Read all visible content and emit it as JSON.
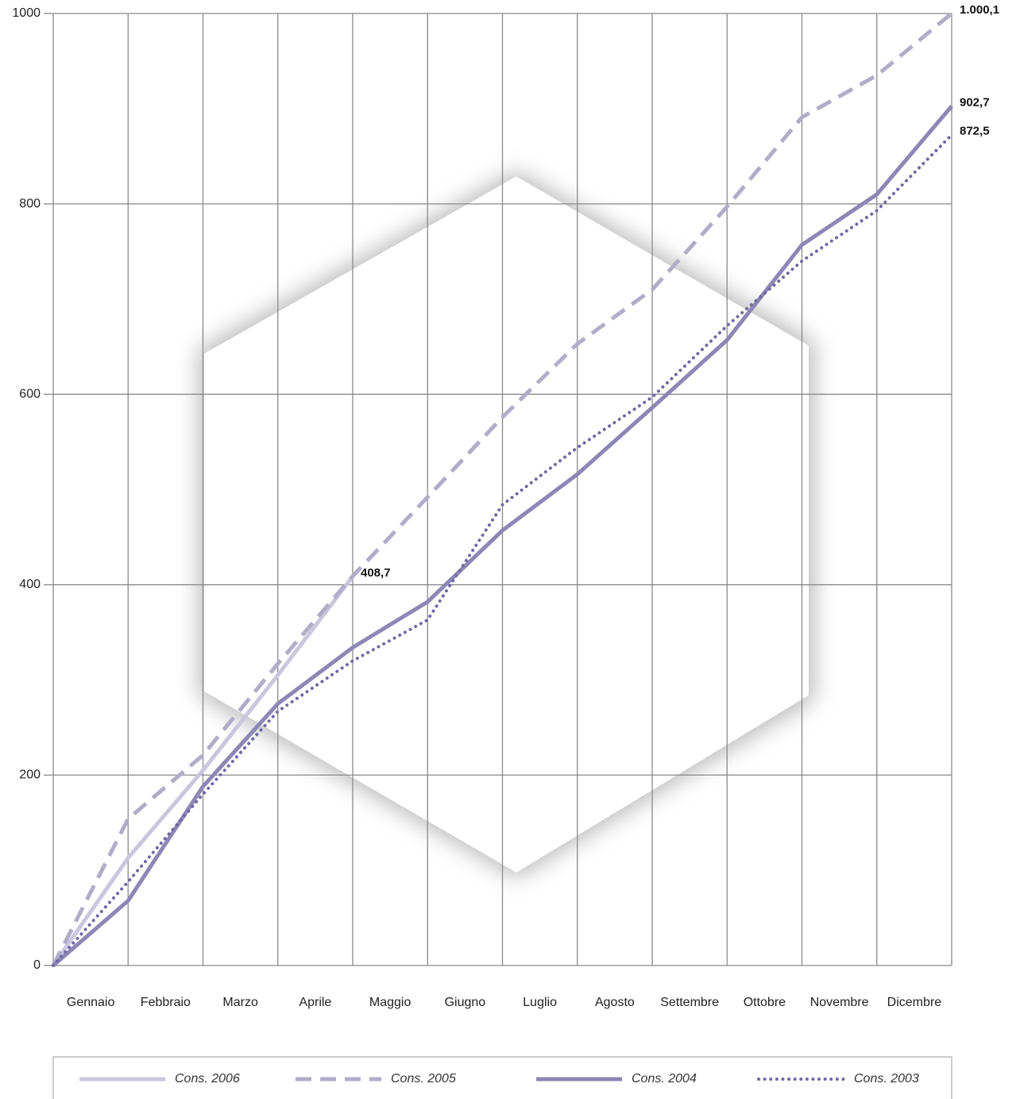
{
  "chart_data": {
    "type": "line",
    "categories": [
      null,
      "Gennaio",
      "Febbraio",
      "Marzo",
      "Aprile",
      "Maggio",
      "Giugno",
      "Luglio",
      "Agosto",
      "Settembre",
      "Ottobre",
      "Novembre",
      "Dicembre"
    ],
    "series": [
      {
        "name": "Cons. 2006",
        "color": "#c9c6dd",
        "style": "solid",
        "values": [
          0,
          113,
          205,
          305,
          408.7,
          null,
          null,
          null,
          null,
          null,
          null,
          null,
          null
        ],
        "value_labels": [
          null,
          null,
          null,
          null,
          "408,7",
          null,
          null,
          null,
          null,
          null,
          null,
          null,
          null
        ]
      },
      {
        "name": "Cons. 2005",
        "color": "#b1adc9",
        "style": "dashed",
        "values": [
          0,
          154,
          221,
          317,
          409,
          492,
          576,
          653,
          710,
          797,
          891,
          935,
          1000.1
        ],
        "value_labels": [
          null,
          null,
          null,
          null,
          null,
          null,
          null,
          null,
          null,
          null,
          null,
          null,
          "1.000,1"
        ]
      },
      {
        "name": "Cons. 2004",
        "color": "#8c87b5",
        "style": "solid",
        "values": [
          0,
          68,
          188,
          275,
          334,
          382,
          457,
          516,
          586,
          657,
          757,
          810,
          902.7
        ],
        "value_labels": [
          null,
          null,
          null,
          null,
          null,
          null,
          null,
          null,
          null,
          null,
          null,
          null,
          "902,7"
        ]
      },
      {
        "name": "Cons. 2003",
        "color": "#6f6aa2",
        "style": "dotted",
        "values": [
          0,
          88,
          180,
          267,
          320,
          363,
          484,
          544,
          597,
          672,
          740,
          793,
          872.5
        ],
        "value_labels": [
          null,
          null,
          null,
          null,
          null,
          null,
          null,
          null,
          null,
          null,
          null,
          null,
          "872,5"
        ]
      }
    ],
    "ylim": [
      0,
      1000
    ],
    "yticks": [
      0,
      200,
      400,
      600,
      800,
      1000
    ],
    "grid": true
  }
}
